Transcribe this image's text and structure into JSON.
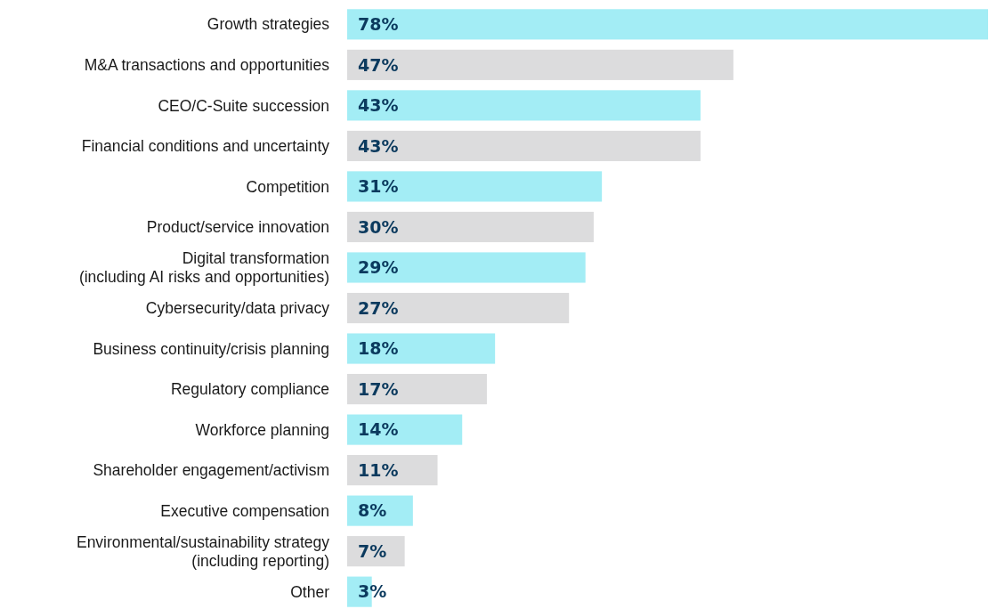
{
  "chart_data": {
    "type": "bar",
    "orientation": "horizontal",
    "categories": [
      "Growth strategies",
      "M&A transactions and opportunities",
      "CEO/C-Suite succession",
      "Financial conditions and uncertainty",
      "Competition",
      "Product/service innovation",
      "Digital transformation (including AI risks and opportunities)",
      "Cybersecurity/data privacy",
      "Business continuity/crisis planning",
      "Regulatory compliance",
      "Workforce planning",
      "Shareholder engagement/activism",
      "Executive compensation",
      "Environmental/sustainability strategy (including reporting)",
      "Other"
    ],
    "values": [
      78,
      47,
      43,
      43,
      31,
      30,
      29,
      27,
      18,
      17,
      14,
      11,
      8,
      7,
      3
    ],
    "value_labels": [
      "78%",
      "47%",
      "43%",
      "43%",
      "31%",
      "30%",
      "29%",
      "27%",
      "18%",
      "17%",
      "14%",
      "11%",
      "8%",
      "7%",
      "3%"
    ],
    "colors": [
      "#a3edf5",
      "#dcdcdd",
      "#a3edf5",
      "#dcdcdd",
      "#a3edf5",
      "#dcdcdd",
      "#a3edf5",
      "#dcdcdd",
      "#a3edf5",
      "#dcdcdd",
      "#a3edf5",
      "#dcdcdd",
      "#a3edf5",
      "#dcdcdd",
      "#a3edf5"
    ],
    "stacked": false
  }
}
